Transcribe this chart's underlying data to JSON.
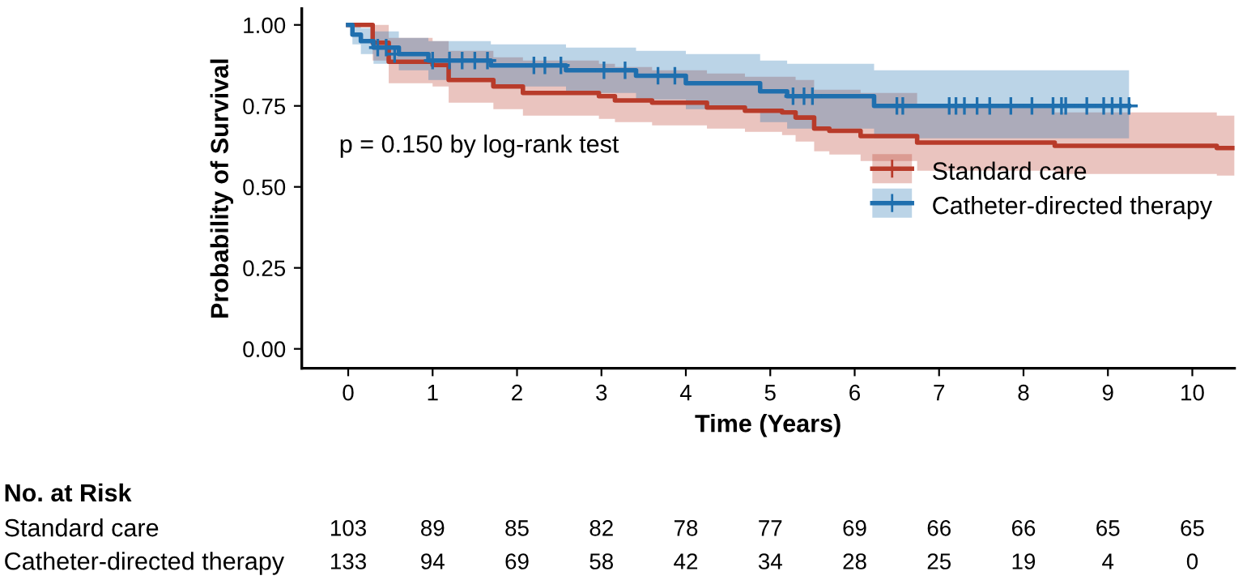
{
  "chart_data": [
    {
      "type": "step",
      "xlabel": "Time (Years)",
      "ylabel": "Probability of Survival",
      "xlim": [
        -0.55,
        10.5
      ],
      "ylim": [
        -0.06,
        1.05
      ],
      "xticks": [
        0,
        1,
        2,
        3,
        4,
        5,
        6,
        7,
        8,
        9,
        10
      ],
      "yticks": [
        {
          "value": 0,
          "label": "0.00"
        },
        {
          "value": 0.25,
          "label": "0.25"
        },
        {
          "value": 0.5,
          "label": "0.50"
        },
        {
          "value": 0.75,
          "label": "0.75"
        },
        {
          "value": 1,
          "label": "1.00"
        }
      ],
      "grid": false,
      "legend": "right",
      "annotations": [
        "p = 0.150 by log-rank test"
      ],
      "series": [
        {
          "name": "Standard care",
          "color": "#b83b2a",
          "x": [
            0,
            0.29,
            0.48,
            1.0,
            1.19,
            1.72,
            2.07,
            2.97,
            3.16,
            3.6,
            4.25,
            4.7,
            5.14,
            5.3,
            5.52,
            5.7,
            6.07,
            6.74,
            8.37,
            10.29,
            10.5
          ],
          "values": [
            1.0,
            0.945,
            0.886,
            0.876,
            0.83,
            0.81,
            0.79,
            0.78,
            0.767,
            0.76,
            0.745,
            0.735,
            0.73,
            0.714,
            0.68,
            0.673,
            0.657,
            0.637,
            0.627,
            0.62,
            0.62
          ],
          "upper": [
            1.0,
            1.0,
            0.96,
            0.95,
            0.92,
            0.9,
            0.89,
            0.88,
            0.87,
            0.86,
            0.85,
            0.84,
            0.84,
            0.83,
            0.8,
            0.8,
            0.79,
            0.75,
            0.73,
            0.72,
            0.72
          ],
          "lower": [
            1.0,
            0.89,
            0.82,
            0.81,
            0.76,
            0.74,
            0.72,
            0.71,
            0.7,
            0.69,
            0.68,
            0.67,
            0.66,
            0.64,
            0.61,
            0.6,
            0.58,
            0.55,
            0.54,
            0.535,
            0.535
          ]
        },
        {
          "name": "Catheter-directed therapy",
          "color": "#1f6fae",
          "x": [
            0,
            0.05,
            0.15,
            0.3,
            0.6,
            0.95,
            1.69,
            2.58,
            3.41,
            4.0,
            4.88,
            5.2,
            6.23,
            9.25
          ],
          "values": [
            1.0,
            0.97,
            0.95,
            0.93,
            0.91,
            0.89,
            0.875,
            0.86,
            0.843,
            0.82,
            0.795,
            0.78,
            0.75,
            0.75
          ],
          "upper": [
            1.0,
            1.0,
            0.99,
            0.98,
            0.96,
            0.95,
            0.94,
            0.93,
            0.92,
            0.91,
            0.89,
            0.88,
            0.86,
            0.86
          ],
          "lower": [
            1.0,
            0.94,
            0.91,
            0.88,
            0.86,
            0.83,
            0.81,
            0.79,
            0.77,
            0.74,
            0.7,
            0.68,
            0.65,
            0.65
          ]
        },
        {
          "type": "scatter",
          "marker": "cross",
          "color": "#1f6fae",
          "x": [
            0.35,
            0.45,
            0.55,
            1.0,
            1.2,
            1.35,
            1.5,
            1.65,
            2.2,
            2.33,
            2.52,
            3.03,
            3.28,
            3.67,
            3.87,
            5.27,
            5.4,
            5.5,
            6.5,
            6.57,
            7.12,
            7.2,
            7.3,
            7.45,
            7.6,
            7.85,
            8.1,
            8.35,
            8.45,
            8.5,
            8.75,
            8.95,
            9.05,
            9.15,
            9.25
          ],
          "values": [
            0.93,
            0.93,
            0.91,
            0.89,
            0.89,
            0.89,
            0.89,
            0.89,
            0.875,
            0.875,
            0.875,
            0.86,
            0.86,
            0.843,
            0.843,
            0.78,
            0.78,
            0.78,
            0.75,
            0.75,
            0.75,
            0.75,
            0.75,
            0.75,
            0.75,
            0.75,
            0.75,
            0.75,
            0.75,
            0.75,
            0.75,
            0.75,
            0.75,
            0.75,
            0.75
          ]
        }
      ]
    },
    {
      "type": "heatmap",
      "title": "No. at Risk",
      "data_labels": true,
      "categories": [
        null,
        null,
        null,
        null,
        null,
        null,
        null,
        null,
        null,
        null,
        null
      ],
      "y_categories": [
        "Standard care",
        "Catheter-directed therapy"
      ],
      "cells": [
        [
          103,
          89,
          85,
          82,
          78,
          77,
          69,
          66,
          66,
          65,
          65
        ],
        [
          133,
          94,
          69,
          58,
          42,
          34,
          28,
          25,
          19,
          4,
          0
        ]
      ]
    }
  ]
}
